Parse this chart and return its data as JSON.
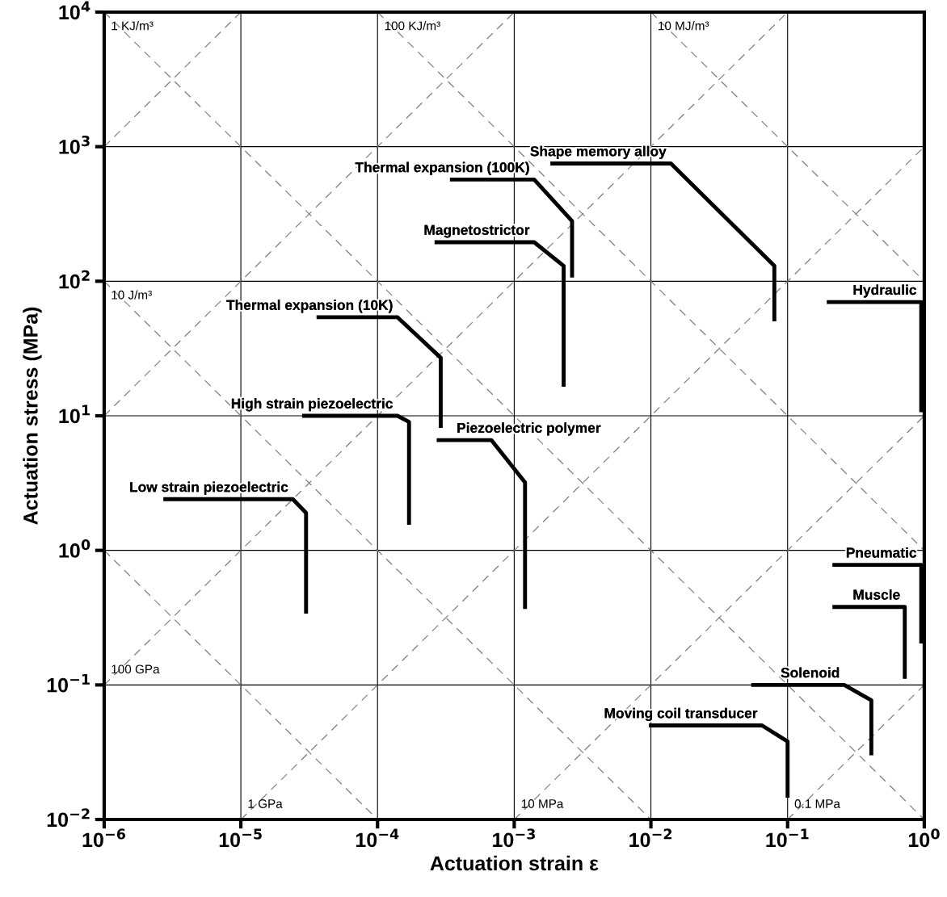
{
  "chart_data": {
    "type": "line",
    "xlabel": "Actuation strain ε",
    "ylabel": "Actuation stress (MPa)",
    "log": "xy",
    "grid": true,
    "legend": false,
    "marker": "none",
    "line_style": "solid",
    "xlim": [
      1e-06,
      1
    ],
    "ylim": [
      0.01,
      10000.0
    ],
    "xticks": [
      {
        "value": 1e-06,
        "label": "10$^{−6}$"
      },
      {
        "value": 1e-05,
        "label": "10$^{−5}$"
      },
      {
        "value": 0.0001,
        "label": "10$^{−4}$"
      },
      {
        "value": 0.001,
        "label": "10$^{−3}$"
      },
      {
        "value": 0.01,
        "label": "10$^{−2}$"
      },
      {
        "value": 0.1,
        "label": "10$^{−1}$"
      },
      {
        "value": 1,
        "label": "10$^{0}$"
      }
    ],
    "yticks": [
      {
        "value": 0.01,
        "label": "10$^{−2}$"
      },
      {
        "value": 0.1,
        "label": "10$^{−1}$"
      },
      {
        "value": 1,
        "label": "10$^{0}$"
      },
      {
        "value": 10,
        "label": "10$^{1}$"
      },
      {
        "value": 100,
        "label": "10$^{2}$"
      },
      {
        "value": 1000,
        "label": "10$^{3}$"
      },
      {
        "value": 10000,
        "label": "10$^{4}$"
      }
    ],
    "series": [
      {
        "name": "Thermal expansion (100K)",
        "color": "#000000",
        "x": [
          0.00035,
          0.0014,
          0.00265,
          0.00265
        ],
        "values": [
          570,
          570,
          280,
          110
        ]
      },
      {
        "name": "Magnetostrictor",
        "color": "#000000",
        "x": [
          0.00027,
          0.0014,
          0.0023,
          0.0023
        ],
        "values": [
          195,
          195,
          130,
          17
        ]
      },
      {
        "name": "Shape memory alloy",
        "color": "#000000",
        "x": [
          0.0019,
          0.014,
          0.08,
          0.08
        ],
        "values": [
          750,
          750,
          130,
          52
        ]
      },
      {
        "name": "Hydraulic",
        "color": "#000000",
        "x": [
          0.2,
          0.95,
          0.95
        ],
        "values": [
          70,
          70,
          11
        ]
      },
      {
        "name": "Thermal expansion (10K)",
        "color": "#000000",
        "x": [
          3.7e-05,
          0.00014,
          0.00029,
          0.00029
        ],
        "values": [
          54,
          54,
          27,
          8.4
        ]
      },
      {
        "name": "High strain piezoelectric",
        "color": "#000000",
        "x": [
          2.9e-05,
          0.00014,
          0.00017,
          0.00017
        ],
        "values": [
          10,
          10,
          9,
          1.6
        ]
      },
      {
        "name": "Piezoelectric polymer",
        "color": "#000000",
        "x": [
          0.00028,
          0.00068,
          0.0012,
          0.0012
        ],
        "values": [
          6.6,
          6.6,
          3.2,
          0.38
        ]
      },
      {
        "name": "Low strain piezoelectric",
        "color": "#000000",
        "x": [
          2.8e-06,
          2.4e-05,
          3e-05,
          3e-05
        ],
        "values": [
          2.4,
          2.4,
          1.9,
          0.35
        ]
      },
      {
        "name": "Pneumatic",
        "color": "#000000",
        "x": [
          0.22,
          0.95,
          0.95
        ],
        "values": [
          0.78,
          0.78,
          0.21
        ]
      },
      {
        "name": "Muscle",
        "color": "#000000",
        "x": [
          0.22,
          0.72,
          0.72
        ],
        "values": [
          0.38,
          0.38,
          0.115
        ]
      },
      {
        "name": "Solenoid",
        "color": "#000000",
        "x": [
          0.056,
          0.26,
          0.41,
          0.41
        ],
        "values": [
          0.1,
          0.1,
          0.077,
          0.031
        ]
      },
      {
        "name": "Moving coil transducer",
        "color": "#000000",
        "x": [
          0.01,
          0.065,
          0.1,
          0.1
        ],
        "values": [
          0.05,
          0.05,
          0.038,
          0.015
        ]
      },
      {
        "color": "#808080",
        "line_style": "dashed",
        "x": [
          1e-06,
          1
        ],
        "values": [
          10000.0,
          0.01
        ]
      },
      {
        "color": "#808080",
        "line_style": "dashed",
        "x": [
          0.0001,
          1
        ],
        "values": [
          10000.0,
          1
        ]
      },
      {
        "color": "#808080",
        "line_style": "dashed",
        "x": [
          0.01,
          1
        ],
        "values": [
          10000.0,
          100
        ]
      },
      {
        "color": "#808080",
        "line_style": "dashed",
        "x": [
          1e-06,
          0.01
        ],
        "values": [
          100,
          0.01
        ]
      },
      {
        "color": "#808080",
        "line_style": "dashed",
        "x": [
          1e-06,
          0.0001
        ],
        "values": [
          1,
          0.01
        ]
      },
      {
        "color": "#808080",
        "line_style": "dashed",
        "x": [
          1e-06,
          1e-05
        ],
        "values": [
          1000,
          10000.0
        ]
      },
      {
        "color": "#808080",
        "line_style": "dashed",
        "x": [
          1e-06,
          0.001
        ],
        "values": [
          10,
          10000.0
        ]
      },
      {
        "color": "#808080",
        "line_style": "dashed",
        "x": [
          1e-06,
          0.1
        ],
        "values": [
          0.1,
          10000.0
        ]
      },
      {
        "color": "#808080",
        "line_style": "dashed",
        "x": [
          1e-05,
          1
        ],
        "values": [
          0.01,
          1000
        ]
      },
      {
        "color": "#808080",
        "line_style": "dashed",
        "x": [
          0.001,
          1
        ],
        "values": [
          0.01,
          10
        ]
      },
      {
        "color": "#808080",
        "line_style": "dashed",
        "x": [
          0.1,
          1
        ],
        "values": [
          0.01,
          0.1
        ]
      }
    ],
    "annotations": [
      {
        "text": "1 KJ/m³",
        "x": 1e-06,
        "y": 10000.0
      },
      {
        "text": "100 KJ/m³",
        "x": 0.0001,
        "y": 10000.0
      },
      {
        "text": "10 MJ/m³",
        "x": 0.01,
        "y": 10000.0
      },
      {
        "text": "10 J/m³",
        "x": 1e-06,
        "y": 100
      },
      {
        "text": "100 GPa",
        "x": 1e-06,
        "y": 0.1
      },
      {
        "text": "1 GPa",
        "x": 1e-05,
        "y": 0.01
      },
      {
        "text": "10 MPa",
        "x": 0.001,
        "y": 0.01
      },
      {
        "text": "0.1 MPa",
        "x": 0.1,
        "y": 0.01
      }
    ]
  }
}
